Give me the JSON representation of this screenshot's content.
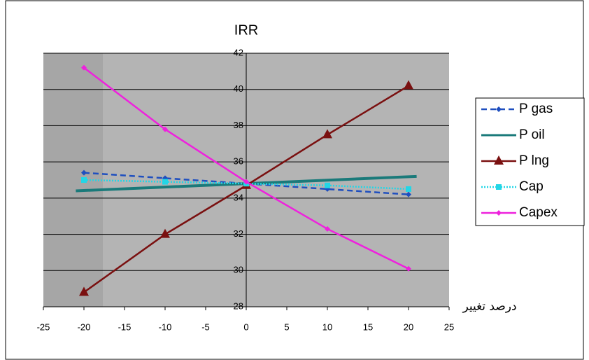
{
  "chart_data": {
    "type": "line",
    "title": "IRR",
    "x_label": "درصد تغییر",
    "xlim": [
      -25,
      25
    ],
    "xticks": [
      -25,
      -20,
      -15,
      -10,
      -5,
      0,
      5,
      10,
      15,
      20,
      25
    ],
    "ylim": [
      28,
      42
    ],
    "yticks": [
      28,
      30,
      32,
      34,
      36,
      38,
      40,
      42
    ],
    "grid": true,
    "legend": "right",
    "series": [
      {
        "name": "P gas",
        "color": "#1f4fbf",
        "dash": "dashed",
        "marker": "diamond",
        "x": [
          -20,
          -10,
          0,
          10,
          20
        ],
        "values": [
          35.4,
          35.1,
          34.8,
          34.5,
          34.2
        ]
      },
      {
        "name": "P oil",
        "color": "#1a7a7a",
        "dash": "solid",
        "marker": "none",
        "x": [
          -21,
          0,
          21
        ],
        "values": [
          34.4,
          34.8,
          35.2
        ]
      },
      {
        "name": "P lng",
        "color": "#7a1010",
        "dash": "solid",
        "marker": "triangle",
        "x": [
          -20,
          -10,
          0,
          10,
          20
        ],
        "values": [
          28.8,
          32,
          34.7,
          37.5,
          40.2
        ]
      },
      {
        "name": "Cap",
        "color": "#22d6e6",
        "dash": "dotted",
        "marker": "square",
        "x": [
          -20,
          -10,
          0,
          10,
          20
        ],
        "values": [
          35.0,
          34.9,
          34.8,
          34.7,
          34.5
        ]
      },
      {
        "name": "Capex",
        "color": "#ee22dd",
        "dash": "solid",
        "marker": "diamond",
        "x": [
          -20,
          -10,
          0,
          10,
          20
        ],
        "values": [
          41.2,
          37.8,
          34.9,
          32.3,
          30.1
        ]
      }
    ]
  }
}
